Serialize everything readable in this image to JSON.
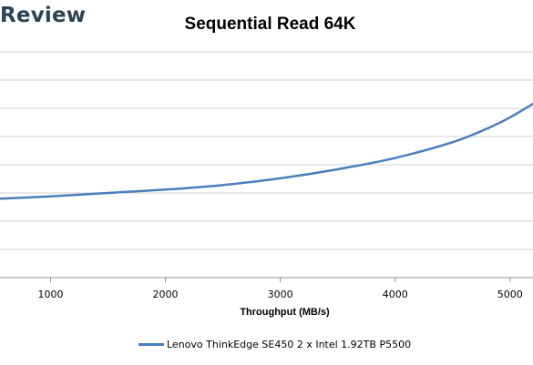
{
  "brand": {
    "text": "Review"
  },
  "chart_data": {
    "type": "line",
    "title": "Sequential Read 64K",
    "xlabel": "Throughput (MB/s)",
    "ylabel": "",
    "xlim": [
      560,
      5200
    ],
    "ylim": [
      0,
      10
    ],
    "grid": true,
    "x_ticks": [
      "1000",
      "2000",
      "3000",
      "4000",
      "5000"
    ],
    "legend": "bottom",
    "series": [
      {
        "name": "Lenovo ThinkEdge SE450 2 x Intel 1.92TB P5500",
        "color": "#4a7ebb",
        "x": [
          560,
          1000,
          1500,
          2000,
          2500,
          3000,
          3500,
          4000,
          4500,
          4800,
          5000,
          5200
        ],
        "y": [
          3.5,
          3.6,
          3.75,
          3.9,
          4.1,
          4.4,
          4.8,
          5.3,
          6.0,
          6.6,
          7.1,
          7.7
        ]
      }
    ]
  }
}
